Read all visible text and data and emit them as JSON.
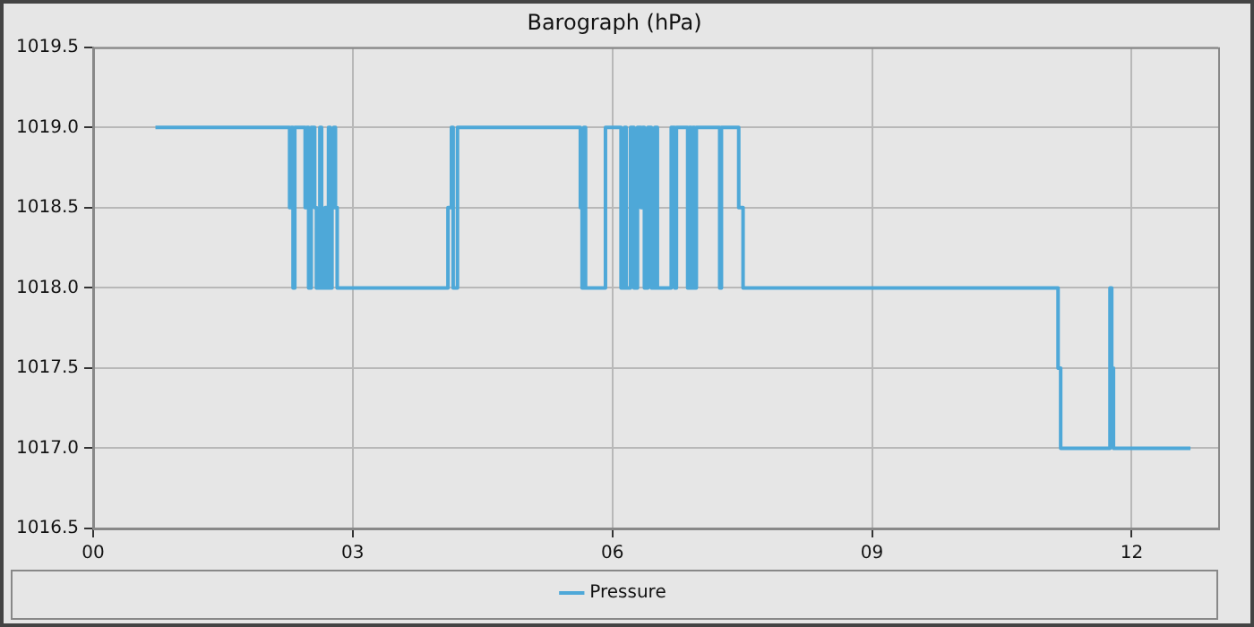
{
  "chart_data": {
    "type": "step",
    "title": "Barograph (hPa)",
    "xlim": [
      0,
      13
    ],
    "xticks": [
      {
        "value": 0,
        "label": "00"
      },
      {
        "value": 3,
        "label": "03"
      },
      {
        "value": 6,
        "label": "06"
      },
      {
        "value": 9,
        "label": "09"
      },
      {
        "value": 12,
        "label": "12"
      }
    ],
    "ylim": [
      1016.5,
      1019.5
    ],
    "yticks": [
      {
        "value": 1016.5,
        "label": "1016.5"
      },
      {
        "value": 1017,
        "label": "1017.0"
      },
      {
        "value": 1017.5,
        "label": "1017.5"
      },
      {
        "value": 1018,
        "label": "1018.0"
      },
      {
        "value": 1018.5,
        "label": "1018.5"
      },
      {
        "value": 1019,
        "label": "1019.0"
      },
      {
        "value": 1019.5,
        "label": "1019.5"
      }
    ],
    "grid": true,
    "legend": "bottom",
    "line_style": "solid",
    "marker": "none",
    "series": [
      {
        "name": "Pressure",
        "color": "#4ea8d8",
        "x": [
          0.72,
          2.27,
          2.29,
          2.31,
          2.33,
          2.45,
          2.47,
          2.49,
          2.52,
          2.56,
          2.58,
          2.62,
          2.64,
          2.68,
          2.7,
          2.72,
          2.74,
          2.76,
          2.78,
          2.8,
          2.82,
          4.1,
          4.14,
          4.16,
          4.21,
          5.63,
          5.65,
          5.67,
          5.69,
          5.92,
          6.1,
          6.14,
          6.16,
          6.21,
          6.25,
          6.29,
          6.33,
          6.35,
          6.37,
          6.41,
          6.45,
          6.49,
          6.52,
          6.68,
          6.72,
          6.74,
          6.87,
          6.89,
          6.91,
          6.93,
          6.95,
          6.97,
          7.24,
          7.26,
          7.46,
          7.51,
          11.15,
          11.18,
          11.75,
          11.77,
          11.79,
          12.68
        ],
        "values": [
          1019,
          1018.5,
          1019,
          1018,
          1019,
          1018.5,
          1019,
          1018,
          1019,
          1018.5,
          1018,
          1019,
          1018,
          1018.5,
          1018,
          1019,
          1018,
          1018.5,
          1019,
          1018.5,
          1018,
          1018.5,
          1019,
          1018,
          1019,
          1018.5,
          1018,
          1019,
          1018,
          1019,
          1018,
          1019,
          1018,
          1019,
          1018,
          1019,
          1018.5,
          1019,
          1018,
          1019,
          1018,
          1019,
          1018,
          1019,
          1018,
          1019,
          1018,
          1019,
          1018,
          1019,
          1018,
          1019,
          1018,
          1019,
          1018.5,
          1018,
          1017.5,
          1017,
          1018,
          1017.5,
          1017,
          1017
        ]
      }
    ]
  }
}
